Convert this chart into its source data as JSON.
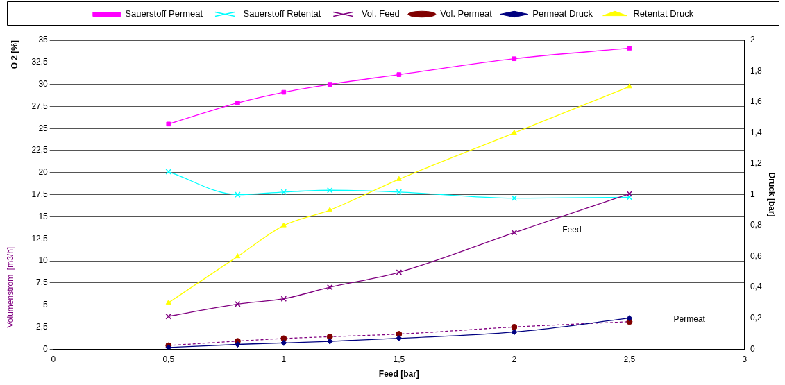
{
  "chart_data": {
    "type": "line",
    "xlabel": "Feed [bar]",
    "ylabel": "O 2 [%]",
    "y2label": "Druck [bar]",
    "x": [
      0.5,
      0.8,
      1,
      1.2,
      1.5,
      2,
      2.5
    ],
    "series": [
      {
        "name": "Sauerstoff Permeat",
        "color": "#ff00ff",
        "marker": "square",
        "values": [
          25.5,
          27.9,
          29.1,
          30,
          31.1,
          32.9,
          34.1
        ]
      },
      {
        "name": "Sauerstoff Retentat",
        "color": "#00ffff",
        "marker": "cross",
        "values": [
          20.1,
          17.5,
          17.8,
          18,
          17.8,
          17.1,
          17.2
        ]
      },
      {
        "name": "Vol. Feed",
        "color": "#800080",
        "marker": "cross",
        "values": [
          3.7,
          5.1,
          5.7,
          7,
          8.7,
          13.2,
          17.6
        ]
      },
      {
        "name": "Vol. Permeat",
        "color": "#800080",
        "colors": [
          "#800000",
          "#800000",
          "#800000",
          "#800000",
          "#800000",
          "#800000",
          "#800000"
        ],
        "marker": "circle",
        "line_style": "dashed",
        "values": [
          0.4,
          0.9,
          1.2,
          1.4,
          1.7,
          2.5,
          3.1
        ]
      },
      {
        "name": "Permeat Druck",
        "color": "#000080",
        "marker": "diamond",
        "axis": "y2",
        "values": [
          0.01,
          0.03,
          0.04,
          0.05,
          0.07,
          0.11,
          0.2
        ]
      },
      {
        "name": "Retentat Druck",
        "color": "#ffff00",
        "marker": "triangle",
        "axis": "y2",
        "values": [
          0.3,
          0.6,
          0.8,
          0.9,
          1.1,
          1.4,
          1.7
        ]
      }
    ],
    "xlim": [
      0,
      3
    ],
    "xticks": [
      0,
      {
        "value": 0.5,
        "label": "0,5"
      },
      1,
      {
        "value": 1.5,
        "label": "1,5"
      },
      2,
      {
        "value": 2.5,
        "label": "2,5"
      },
      3
    ],
    "ylim": [
      0,
      35
    ],
    "yticks": [
      0,
      {
        "value": 2.5,
        "label": "2,5"
      },
      5,
      {
        "value": 7.5,
        "label": "7,5"
      },
      10,
      {
        "value": 12.5,
        "label": "12,5"
      },
      15,
      {
        "value": 17.5,
        "label": "17,5"
      },
      20,
      {
        "value": 22.5,
        "label": "22,5"
      },
      25,
      {
        "value": 27.5,
        "label": "27,5"
      },
      30,
      {
        "value": 32.5,
        "label": "32,5"
      },
      35
    ],
    "y2lim": [
      0,
      2
    ],
    "y2ticks": [
      0,
      {
        "value": 0.2,
        "label": "0,2"
      },
      {
        "value": 0.4,
        "label": "0,4"
      },
      {
        "value": 0.6,
        "label": "0,6"
      },
      {
        "value": 0.8,
        "label": "0,8"
      },
      1,
      {
        "value": 1.2,
        "label": "1,2"
      },
      {
        "value": 1.4,
        "label": "1,4"
      },
      {
        "value": 1.6,
        "label": "1,6"
      },
      {
        "value": 1.8,
        "label": "1,8"
      },
      2
    ],
    "grid": "y",
    "legend": "top",
    "annotations": [
      "Feed",
      "Permeat",
      "Volumenstrom  [m3/h]"
    ]
  }
}
